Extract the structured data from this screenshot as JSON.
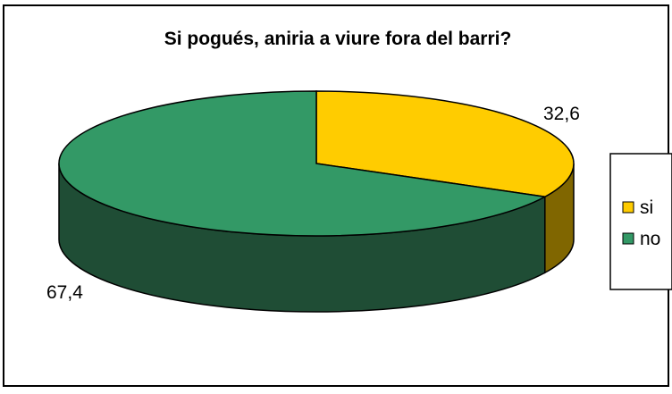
{
  "chart_data": {
    "type": "pie",
    "title": "Si pogués, aniria a viure fora del barri?",
    "categories": [
      "si",
      "no"
    ],
    "values": [
      32.6,
      67.4
    ],
    "labels": [
      "32,6",
      "67,4"
    ],
    "colors": {
      "si": "#FFCC00",
      "si_side": "#806600",
      "no": "#339966",
      "no_side": "#1F4D35"
    },
    "legend_position": "right",
    "style": "3d"
  }
}
